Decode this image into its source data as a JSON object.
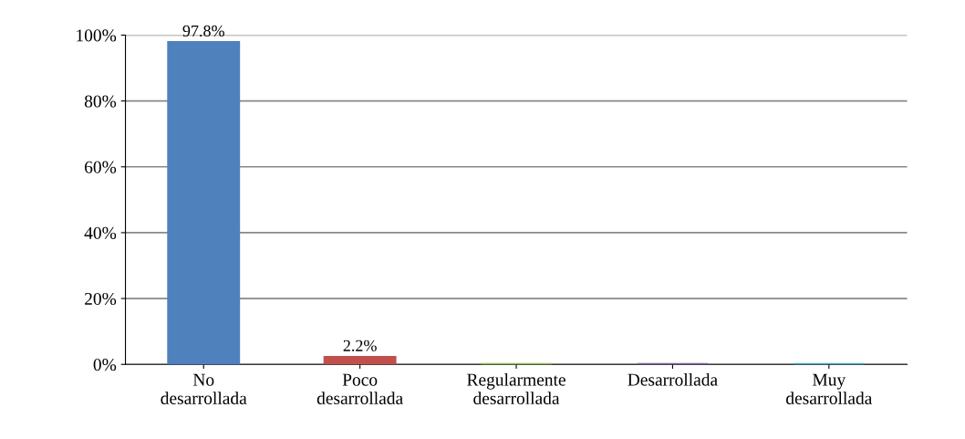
{
  "chart_data": {
    "type": "bar",
    "categories": [
      "No\ndesarrollada",
      "Poco\ndesarrollada",
      "Regularmente\ndesarrollada",
      "Desarrollada",
      "Muy\ndesarrollada"
    ],
    "values": [
      97.8,
      2.2,
      0,
      0,
      0
    ],
    "colors": [
      "#4f81bd",
      "#c0504d",
      "#9bbb59",
      "#8064a2",
      "#4bacc6"
    ],
    "value_labels": [
      "97.8%",
      "2.2%",
      null,
      null,
      null
    ],
    "ylim": [
      0,
      100
    ],
    "yticks": [
      {
        "value": 0,
        "label": "0%"
      },
      {
        "value": 20,
        "label": "20%"
      },
      {
        "value": 40,
        "label": "40%"
      },
      {
        "value": 60,
        "label": "60%"
      },
      {
        "value": 80,
        "label": "80%"
      },
      {
        "value": 100,
        "label": "100%"
      }
    ],
    "grid": "y"
  }
}
